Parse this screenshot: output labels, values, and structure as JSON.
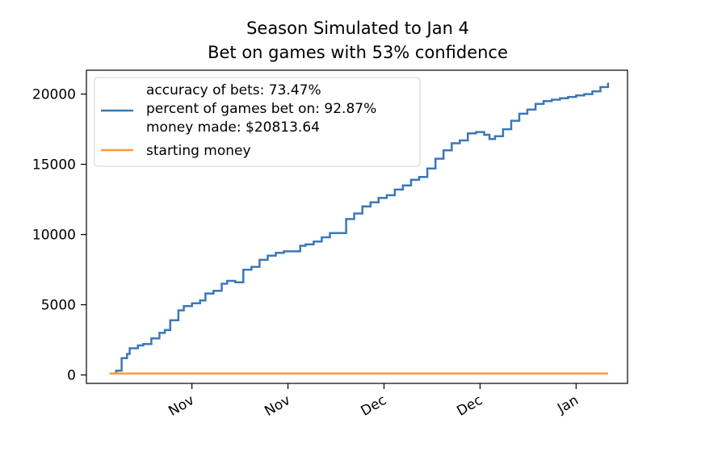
{
  "chart_data": {
    "type": "line",
    "title": "Season Simulated to Jan 4",
    "subtitle": "Bet on games with 53% confidence",
    "xlabel": "",
    "ylabel": "",
    "x_tick_labels": [
      "Nov",
      "Nov",
      "Dec",
      "Dec",
      "Jan"
    ],
    "y_ticks": [
      0,
      5000,
      10000,
      15000,
      20000
    ],
    "ylim": [
      -600,
      21700
    ],
    "xlim": [
      0,
      100
    ],
    "grid": false,
    "legend_position": "top-left",
    "series": [
      {
        "name": "accuracy of bets: 73.47%\npercent of games bet on: 92.87%\nmoney made: $20813.64",
        "legend_lines": [
          "accuracy of bets: 73.47%",
          "percent of games bet on: 92.87%",
          "money made: $20813.64"
        ],
        "color": "#3b78b5",
        "step": true,
        "x": [
          4.3,
          5.5,
          6.5,
          7.5,
          8,
          9.5,
          10.5,
          12,
          13.5,
          14.5,
          15.5,
          17,
          18,
          19.5,
          21,
          22,
          23.5,
          25,
          26,
          27.5,
          29,
          30.5,
          32,
          33.5,
          35,
          36.5,
          38,
          39.5,
          40.5,
          42,
          43.5,
          45,
          46.5,
          48,
          49.5,
          51,
          52.5,
          54,
          55.5,
          57,
          58.5,
          60,
          61.5,
          63,
          64.5,
          66,
          67.5,
          69,
          70.5,
          72,
          73.5,
          74.5,
          75.5,
          77,
          78.5,
          80,
          81.5,
          83,
          84.5,
          86,
          87.5,
          89,
          90.5,
          92,
          93.5,
          95,
          96.4
        ],
        "values": [
          100,
          300,
          1200,
          1500,
          1900,
          2100,
          2200,
          2600,
          3000,
          3200,
          3900,
          4600,
          4900,
          5100,
          5300,
          5800,
          6000,
          6500,
          6700,
          6600,
          7500,
          7700,
          8200,
          8500,
          8700,
          8800,
          8800,
          9200,
          9300,
          9500,
          9800,
          10100,
          10100,
          11100,
          11500,
          12000,
          12300,
          12600,
          12800,
          13200,
          13500,
          13900,
          14100,
          14700,
          15400,
          16000,
          16500,
          16700,
          17200,
          17300,
          17100,
          16800,
          17000,
          17500,
          18100,
          18600,
          18900,
          19300,
          19500,
          19600,
          19700,
          19800,
          19900,
          20000,
          20200,
          20500,
          20813.64
        ]
      },
      {
        "name": "starting money",
        "color": "#ff9a3c",
        "step": false,
        "x": [
          4.3,
          96.4
        ],
        "values": [
          100,
          100
        ]
      }
    ]
  }
}
